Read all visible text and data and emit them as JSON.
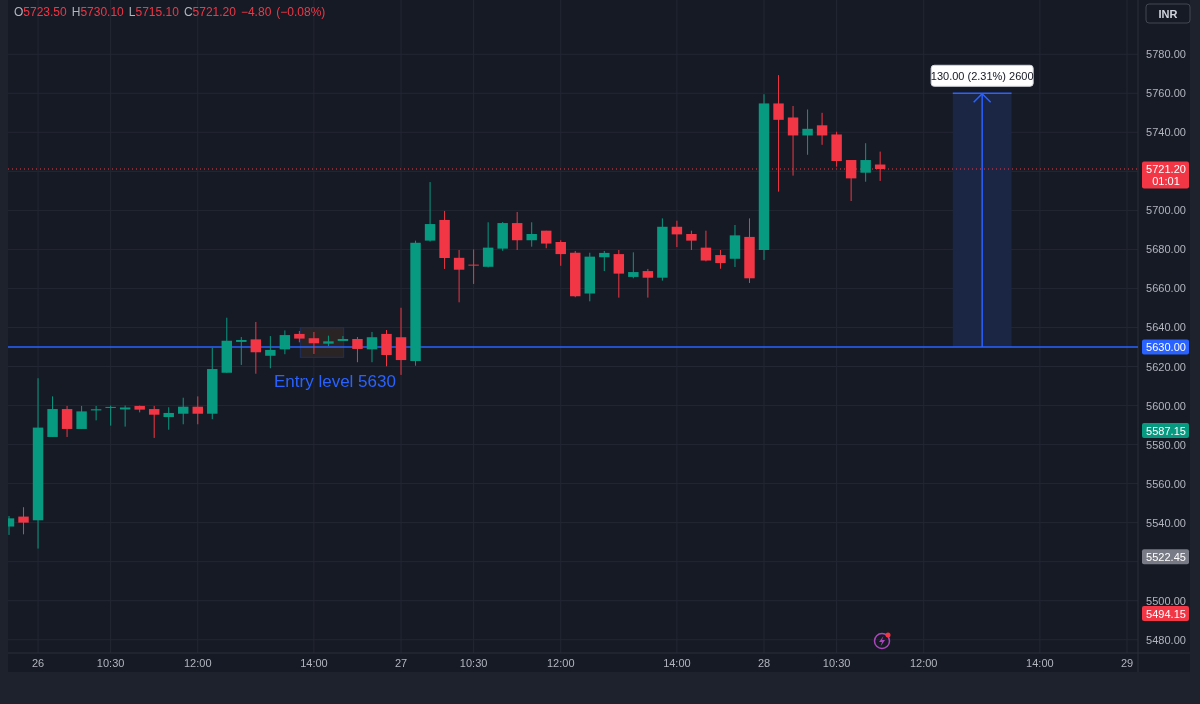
{
  "chart_data": {
    "type": "candlestick",
    "title": "O5723.50 H5730.10 L5715.10 C5721.20 −4.80 (−0.08%)",
    "ylabel": "INR",
    "categories": [
      null,
      null,
      "26",
      null,
      null,
      null,
      null,
      "10:30",
      null,
      null,
      null,
      null,
      null,
      "12:00",
      null,
      null,
      null,
      null,
      null,
      null,
      null,
      "14:00",
      null,
      null,
      null,
      null,
      null,
      "27",
      null,
      null,
      null,
      null,
      "10:30",
      null,
      null,
      null,
      null,
      null,
      "12:00",
      null,
      null,
      null,
      null,
      null,
      null,
      null,
      "14:00",
      null,
      null,
      null,
      null,
      null,
      "28",
      null,
      null,
      null,
      null,
      "10:30",
      null,
      null,
      null,
      null,
      null,
      "12:00",
      null,
      null,
      null,
      null,
      null,
      null,
      null,
      "14:00",
      null,
      null,
      null,
      null,
      null,
      "29"
    ],
    "ohlc": [
      [
        5538,
        5543.4,
        5533.7,
        5542.2
      ],
      [
        5543.1,
        5547.9,
        5534,
        5540
      ],
      [
        5541.2,
        5614,
        5526.7,
        5588.7
      ],
      [
        5583.9,
        5604.7,
        5583.9,
        5598.2
      ],
      [
        5598.2,
        5599.8,
        5583.9,
        5588
      ],
      [
        5588,
        5599.8,
        5588,
        5597
      ],
      [
        5597.5,
        5599.8,
        5592.4,
        5598.1
      ],
      [
        5598.8,
        5600,
        5589.7,
        5599.3
      ],
      [
        5598,
        5600,
        5589.2,
        5599
      ],
      [
        5599.8,
        5600,
        5596.5,
        5597.9
      ],
      [
        5598.2,
        5599.8,
        5583.4,
        5595.3
      ],
      [
        5594.1,
        5599.1,
        5587.6,
        5596.2
      ],
      [
        5595.8,
        5604,
        5590.4,
        5599.4
      ],
      [
        5599.4,
        5604.7,
        5590.4,
        5595.8
      ],
      [
        5595.8,
        5629.6,
        5593,
        5618.7
      ],
      [
        5616.8,
        5645,
        5616.8,
        5633.2
      ],
      [
        5632.6,
        5635.1,
        5620.8,
        5633.6
      ],
      [
        5633.9,
        5642.8,
        5616.3,
        5627.3
      ],
      [
        5625.5,
        5635.6,
        5619.1,
        5628.5
      ],
      [
        5628.8,
        5638.5,
        5626.3,
        5636.1
      ],
      [
        5636.7,
        5638.2,
        5632.4,
        5634.3
      ],
      [
        5634.5,
        5637.7,
        5626.4,
        5631.9
      ],
      [
        5631.7,
        5635.8,
        5630.5,
        5632.9
      ],
      [
        5633.1,
        5635.6,
        5633.1,
        5634.1
      ],
      [
        5634.1,
        5635.1,
        5622.2,
        5629
      ],
      [
        5628.8,
        5637.7,
        5622.2,
        5635
      ],
      [
        5636.7,
        5638.7,
        5620.1,
        5625.9
      ],
      [
        5635,
        5650.1,
        5615.7,
        5623.3
      ],
      [
        5622.8,
        5684.5,
        5620.4,
        5683.4
      ],
      [
        5684.5,
        5714.5,
        5684,
        5693
      ],
      [
        5695.1,
        5699.7,
        5670,
        5675.6
      ],
      [
        5675.7,
        5679.7,
        5652.9,
        5669.6
      ],
      [
        5672.2,
        5680,
        5662.3,
        5671.8
      ],
      [
        5671.1,
        5693.9,
        5670.8,
        5680.9
      ],
      [
        5680.4,
        5694,
        5679.3,
        5693.5
      ],
      [
        5693.5,
        5699.2,
        5679.7,
        5684.7
      ],
      [
        5684.7,
        5693.9,
        5681.4,
        5687.9
      ],
      [
        5689.6,
        5689.6,
        5680.6,
        5683
      ],
      [
        5683.8,
        5684.7,
        5671.6,
        5677.6
      ],
      [
        5678.3,
        5679.2,
        5655.5,
        5656
      ],
      [
        5657.4,
        5678.3,
        5653.4,
        5676.3
      ],
      [
        5676,
        5679.2,
        5668.9,
        5678.2
      ],
      [
        5677.6,
        5679.7,
        5655.3,
        5667.6
      ],
      [
        5665.9,
        5678.5,
        5665.2,
        5668.4
      ],
      [
        5668.9,
        5670,
        5655.3,
        5665.5
      ],
      [
        5665.5,
        5695.9,
        5664,
        5691.6
      ],
      [
        5691.6,
        5694.7,
        5681.2,
        5687.7
      ],
      [
        5687.9,
        5689.6,
        5679.7,
        5684.5
      ],
      [
        5680.9,
        5689.6,
        5673.9,
        5674.3
      ],
      [
        5677.1,
        5679.7,
        5670.1,
        5673
      ],
      [
        5675.2,
        5692.5,
        5671,
        5687.2
      ],
      [
        5686.4,
        5695.9,
        5662.8,
        5665.2
      ],
      [
        5679.7,
        5759.5,
        5674.6,
        5754.8
      ],
      [
        5754.8,
        5769.3,
        5709.6,
        5746.4
      ],
      [
        5747.6,
        5753.5,
        5717.8,
        5738.4
      ],
      [
        5738.4,
        5751.7,
        5728.5,
        5741.8
      ],
      [
        5743.6,
        5750,
        5733.6,
        5738.4
      ],
      [
        5738.9,
        5740.3,
        5722.4,
        5725.3
      ],
      [
        5725.8,
        5725.8,
        5704.8,
        5716.4
      ],
      [
        5719.3,
        5734.4,
        5714.7,
        5725.8
      ],
      [
        5723.5,
        5730.1,
        5715.1,
        5721.2
      ],
      null,
      null,
      null,
      null,
      null,
      null,
      null,
      null,
      null,
      null,
      null,
      null,
      null,
      null,
      null,
      null,
      null
    ],
    "colors": [
      "#089981",
      "#f23645",
      "#089981",
      "#089981",
      "#f23645",
      "#089981",
      "#089981",
      "#089981",
      "#089981",
      "#f23645",
      "#f23645",
      "#089981",
      "#089981",
      "#f23645",
      "#089981",
      "#089981",
      "#089981",
      "#f23645",
      "#089981",
      "#089981",
      "#f23645",
      "#f23645",
      "#089981",
      "#089981",
      "#f23645",
      "#089981",
      "#f23645",
      "#f23645",
      "#089981",
      "#089981",
      "#f23645",
      "#f23645",
      "#f23645",
      "#089981",
      "#089981",
      "#f23645",
      "#089981",
      "#f23645",
      "#f23645",
      "#f23645",
      "#089981",
      "#089981",
      "#f23645",
      "#089981",
      "#f23645",
      "#089981",
      "#f23645",
      "#f23645",
      "#f23645",
      "#f23645",
      "#089981",
      "#f23645",
      "#089981",
      "#f23645",
      "#f23645",
      "#089981",
      "#f23645",
      "#f23645",
      "#f23645",
      "#089981",
      "#f23645",
      null,
      null,
      null,
      null,
      null,
      null,
      null,
      null,
      null,
      null,
      null,
      null,
      null,
      null,
      null,
      null,
      null
    ],
    "ylim": [
      5473.2,
      5807.8
    ],
    "yticks": [
      {
        "value": 5480,
        "label": "5480.00"
      },
      {
        "value": 5500,
        "label": "5500.00"
      },
      {
        "value": 5520,
        "label": null
      },
      {
        "value": 5540,
        "label": "5540.00"
      },
      {
        "value": 5560,
        "label": "5560.00"
      },
      {
        "value": 5580,
        "label": "5580.00"
      },
      {
        "value": 5600,
        "label": "5600.00"
      },
      {
        "value": 5620,
        "label": "5620.00"
      },
      {
        "value": 5640,
        "label": "5640.00"
      },
      {
        "value": 5660,
        "label": "5660.00"
      },
      {
        "value": 5680,
        "label": "5680.00"
      },
      {
        "value": 5700,
        "label": "5700.00"
      },
      {
        "value": 5720,
        "label": null
      },
      {
        "value": 5740,
        "label": "5740.00"
      },
      {
        "value": 5760,
        "label": "5760.00"
      },
      {
        "value": 5780,
        "label": "5780.00"
      }
    ],
    "grid": true,
    "ref_lines": [
      {
        "axis": "y",
        "value": 5721.2,
        "label": "5721.20\n01:01",
        "color": "#f23645",
        "line_style": "dotted"
      },
      {
        "axis": "y",
        "value": 5630,
        "label": "5630.00",
        "color": "#2962ff",
        "line_style": "solid"
      }
    ],
    "bands": [
      {
        "axis": "y",
        "from": 5630,
        "to": 5760,
        "label": "130.00 (2.31%) 2600",
        "color": "#1b2645"
      }
    ],
    "annotations": [
      "Entry level 5630",
      "5587.15",
      "5522.45",
      "5494.15"
    ]
  }
}
